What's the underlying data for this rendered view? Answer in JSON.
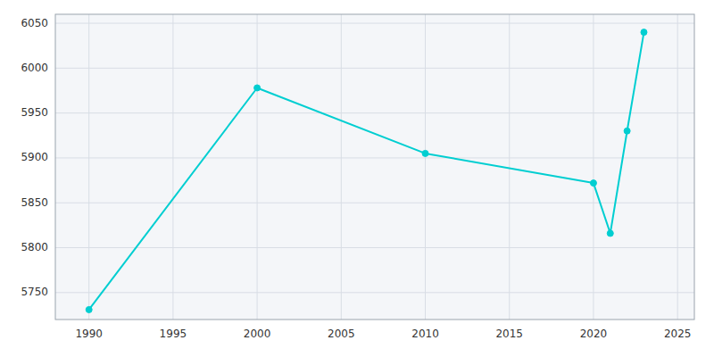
{
  "chart_data": {
    "type": "line",
    "x": [
      1990,
      2000,
      2010,
      2020,
      2021,
      2022,
      2023
    ],
    "values": [
      5731,
      5978,
      5905,
      5872,
      5816,
      5930,
      6040
    ],
    "color": "#00CED1",
    "marker": "circle",
    "xlim": [
      1988,
      2026
    ],
    "ylim": [
      5720,
      6060
    ],
    "xticks": [
      1990,
      1995,
      2000,
      2005,
      2010,
      2015,
      2020,
      2025
    ],
    "yticks": [
      5750,
      5800,
      5850,
      5900,
      5950,
      6000,
      6050
    ],
    "grid": true
  }
}
